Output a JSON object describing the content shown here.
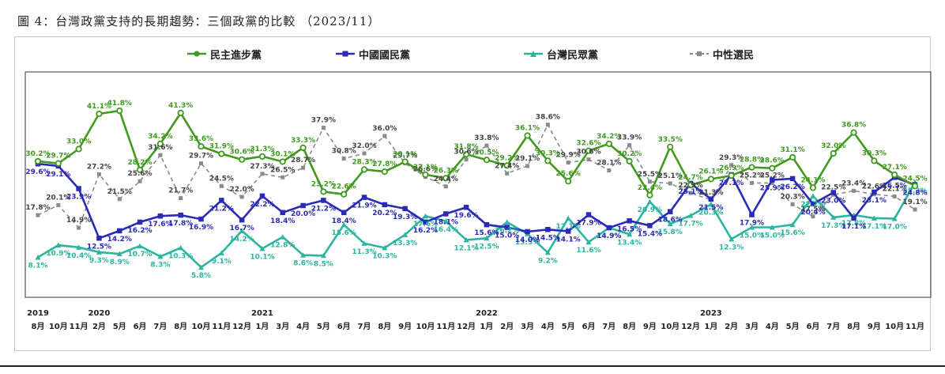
{
  "figure_title": "圖 4：台灣政黨支持的長期趨勢：三個政黨的比較 （2023/11）",
  "chart_data": {
    "type": "line",
    "ylim": [
      0,
      50
    ],
    "x_month_labels": [
      "8月",
      "10月",
      "11月",
      "2月",
      "5月",
      "6月",
      "7月",
      "8月",
      "10月",
      "11月",
      "12月",
      "1月",
      "3月",
      "4月",
      "5月",
      "6月",
      "7月",
      "8月",
      "9月",
      "10月",
      "11月",
      "12月",
      "1月",
      "2月",
      "3月",
      "4月",
      "5月",
      "6月",
      "7月",
      "8月",
      "9月",
      "10月",
      "12月",
      "1月",
      "2月",
      "3月",
      "4月",
      "5月",
      "6月",
      "7月",
      "8月",
      "9月",
      "10月",
      "11月"
    ],
    "x_year_labels": [
      {
        "text": "2019",
        "index": 0
      },
      {
        "text": "2020",
        "index": 3
      },
      {
        "text": "2021",
        "index": 11
      },
      {
        "text": "2022",
        "index": 22
      },
      {
        "text": "2023",
        "index": 33
      }
    ],
    "series": [
      {
        "name": "民主進步黨",
        "color": "#3f9a1e",
        "marker": "circle",
        "dash": "",
        "values": [
          30.2,
          29.7,
          33.0,
          41.1,
          41.8,
          28.2,
          34.2,
          41.3,
          33.6,
          31.9,
          30.6,
          31.3,
          30.1,
          33.3,
          23.2,
          22.6,
          28.3,
          27.8,
          30.1,
          27.1,
          26.3,
          31.8,
          30.5,
          29.2,
          36.1,
          30.3,
          25.6,
          32.6,
          34.2,
          30.2,
          22.4,
          33.5,
          24.7,
          26.1,
          26.9,
          28.8,
          28.6,
          31.1,
          24.1,
          32.0,
          36.8,
          30.3,
          27.1,
          24.5
        ]
      },
      {
        "name": "中國國民黨",
        "color": "#2a2ab8",
        "marker": "square",
        "dash": "",
        "values": [
          29.6,
          29.1,
          23.9,
          12.5,
          14.2,
          16.2,
          17.6,
          17.8,
          16.9,
          21.2,
          16.7,
          22.2,
          18.4,
          20.0,
          21.2,
          18.4,
          21.9,
          20.2,
          19.3,
          16.2,
          18.1,
          19.6,
          15.6,
          15.0,
          14.0,
          14.5,
          14.1,
          17.9,
          14.9,
          16.5,
          15.4,
          18.6,
          25.1,
          21.5,
          27.1,
          17.9,
          25.9,
          26.2,
          20.4,
          23.0,
          17.1,
          23.1,
          26.5,
          24.8
        ]
      },
      {
        "name": "台灣民眾黨",
        "color": "#2bb5a0",
        "marker": "triangle",
        "dash": "",
        "values": [
          8.1,
          10.9,
          10.4,
          9.3,
          8.9,
          10.7,
          8.3,
          10.3,
          5.8,
          9.1,
          14.2,
          10.1,
          12.8,
          8.6,
          8.5,
          15.6,
          11.3,
          10.3,
          13.3,
          17.6,
          16.4,
          12.1,
          12.5,
          16.2,
          13.5,
          9.2,
          17.1,
          11.6,
          14.9,
          13.4,
          20.9,
          15.8,
          17.7,
          20.3,
          12.3,
          15.0,
          15.0,
          15.6,
          22.2,
          17.3,
          17.8,
          17.1,
          17.0,
          25.3
        ]
      },
      {
        "name": "中性選民",
        "color": "#8a8a8a",
        "marker": "square",
        "dash": "5,4",
        "values": [
          17.8,
          20.1,
          14.9,
          27.2,
          21.5,
          25.6,
          31.6,
          21.7,
          29.7,
          24.5,
          22.0,
          27.3,
          26.5,
          28.7,
          37.9,
          30.8,
          32.0,
          36.0,
          29.7,
          26.6,
          24.4,
          30.6,
          33.8,
          27.4,
          29.1,
          38.6,
          29.9,
          30.6,
          28.1,
          33.9,
          25.5,
          25.1,
          22.9,
          21.3,
          29.3,
          25.2,
          25.2,
          20.3,
          17.5,
          22.5,
          23.4,
          22.6,
          22.1,
          19.1
        ]
      }
    ]
  }
}
